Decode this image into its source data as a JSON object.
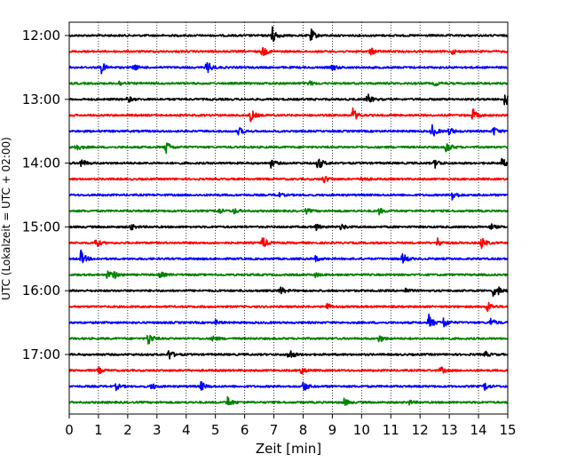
{
  "chart_data": {
    "type": "line",
    "title": "",
    "xlabel": "Zeit  [min]",
    "ylabel": "UTC (Lokalzeit = UTC + 02:00)",
    "xlim": [
      0,
      15
    ],
    "x_ticks": [
      0,
      1,
      2,
      3,
      4,
      5,
      6,
      7,
      8,
      9,
      10,
      11,
      12,
      13,
      14,
      15
    ],
    "x_tick_labels": [
      "0",
      "1",
      "2",
      "3",
      "4",
      "5",
      "6",
      "7",
      "8",
      "9",
      "10",
      "11",
      "12",
      "13",
      "14",
      "15"
    ],
    "y_tick_labels": [
      "12:00",
      "13:00",
      "14:00",
      "15:00",
      "16:00",
      "17:00"
    ],
    "vertical_grid": true,
    "grid_style": "dotted",
    "trace_interval_min": 15,
    "color_cycle": [
      "#000000",
      "#ff0000",
      "#0000ff",
      "#008000"
    ],
    "traces": [
      {
        "start": "12:00",
        "color": "#000000",
        "events": [
          {
            "x": 6.9,
            "amp": 1.6
          },
          {
            "x": 8.25,
            "amp": 0.9
          }
        ]
      },
      {
        "start": "12:15",
        "color": "#ff0000",
        "events": [
          {
            "x": 6.6,
            "amp": 0.7
          },
          {
            "x": 10.3,
            "amp": 0.5
          },
          {
            "x": 13.1,
            "amp": 0.3
          }
        ]
      },
      {
        "start": "12:30",
        "color": "#0000ff",
        "events": [
          {
            "x": 1.1,
            "amp": 0.7
          },
          {
            "x": 2.2,
            "amp": 0.4
          },
          {
            "x": 4.7,
            "amp": 0.9
          },
          {
            "x": 9.0,
            "amp": 0.4
          }
        ]
      },
      {
        "start": "12:45",
        "color": "#008000",
        "events": [
          {
            "x": 1.7,
            "amp": 0.3
          },
          {
            "x": 8.2,
            "amp": 0.3
          },
          {
            "x": 12.5,
            "amp": 0.3
          }
        ]
      },
      {
        "start": "13:00",
        "color": "#000000",
        "events": [
          {
            "x": 2.0,
            "amp": 0.4
          },
          {
            "x": 10.2,
            "amp": 0.7
          },
          {
            "x": 14.9,
            "amp": 0.9
          }
        ]
      },
      {
        "start": "13:15",
        "color": "#ff0000",
        "events": [
          {
            "x": 6.2,
            "amp": 0.8
          },
          {
            "x": 9.7,
            "amp": 0.9
          },
          {
            "x": 13.8,
            "amp": 0.8
          }
        ]
      },
      {
        "start": "13:30",
        "color": "#0000ff",
        "events": [
          {
            "x": 5.8,
            "amp": 0.5
          },
          {
            "x": 12.4,
            "amp": 0.9
          },
          {
            "x": 13.0,
            "amp": 0.5
          },
          {
            "x": 14.5,
            "amp": 0.6
          }
        ]
      },
      {
        "start": "13:45",
        "color": "#008000",
        "events": [
          {
            "x": 0.2,
            "amp": 0.6
          },
          {
            "x": 3.3,
            "amp": 0.9
          },
          {
            "x": 12.9,
            "amp": 0.8
          }
        ]
      },
      {
        "start": "14:00",
        "color": "#000000",
        "events": [
          {
            "x": 0.4,
            "amp": 0.6
          },
          {
            "x": 6.9,
            "amp": 0.5
          },
          {
            "x": 8.5,
            "amp": 1.0
          },
          {
            "x": 12.5,
            "amp": 0.6
          },
          {
            "x": 14.8,
            "amp": 0.6
          }
        ]
      },
      {
        "start": "14:15",
        "color": "#ff0000",
        "events": [
          {
            "x": 8.7,
            "amp": 0.5
          },
          {
            "x": 10.0,
            "amp": 0.4
          }
        ]
      },
      {
        "start": "14:30",
        "color": "#0000ff",
        "events": [
          {
            "x": 7.1,
            "amp": 0.4
          },
          {
            "x": 13.1,
            "amp": 0.7
          }
        ]
      },
      {
        "start": "14:45",
        "color": "#008000",
        "events": [
          {
            "x": 5.1,
            "amp": 0.4
          },
          {
            "x": 5.6,
            "amp": 0.4
          },
          {
            "x": 8.1,
            "amp": 0.3
          },
          {
            "x": 10.6,
            "amp": 0.4
          }
        ]
      },
      {
        "start": "15:00",
        "color": "#000000",
        "events": [
          {
            "x": 2.1,
            "amp": 0.4
          },
          {
            "x": 8.4,
            "amp": 0.5
          },
          {
            "x": 9.3,
            "amp": 0.4
          },
          {
            "x": 14.4,
            "amp": 0.4
          }
        ]
      },
      {
        "start": "15:15",
        "color": "#ff0000",
        "events": [
          {
            "x": 0.9,
            "amp": 0.6
          },
          {
            "x": 6.6,
            "amp": 0.9
          },
          {
            "x": 12.6,
            "amp": 0.6
          },
          {
            "x": 14.1,
            "amp": 0.7
          }
        ]
      },
      {
        "start": "15:30",
        "color": "#0000ff",
        "events": [
          {
            "x": 0.4,
            "amp": 1.0
          },
          {
            "x": 8.4,
            "amp": 0.4
          },
          {
            "x": 11.4,
            "amp": 0.8
          }
        ]
      },
      {
        "start": "15:45",
        "color": "#008000",
        "events": [
          {
            "x": 1.3,
            "amp": 0.6
          },
          {
            "x": 1.5,
            "amp": 0.5
          },
          {
            "x": 3.1,
            "amp": 0.4
          },
          {
            "x": 8.4,
            "amp": 0.3
          }
        ]
      },
      {
        "start": "16:00",
        "color": "#000000",
        "events": [
          {
            "x": 7.2,
            "amp": 0.6
          },
          {
            "x": 11.5,
            "amp": 0.3
          },
          {
            "x": 14.5,
            "amp": 0.6
          },
          {
            "x": 14.7,
            "amp": 0.4
          }
        ]
      },
      {
        "start": "16:15",
        "color": "#ff0000",
        "events": [
          {
            "x": 8.8,
            "amp": 0.5
          },
          {
            "x": 14.3,
            "amp": 0.7
          }
        ]
      },
      {
        "start": "16:30",
        "color": "#0000ff",
        "events": [
          {
            "x": 5.0,
            "amp": 0.3
          },
          {
            "x": 12.3,
            "amp": 1.0
          },
          {
            "x": 12.8,
            "amp": 0.7
          },
          {
            "x": 14.4,
            "amp": 0.6
          }
        ]
      },
      {
        "start": "16:45",
        "color": "#008000",
        "events": [
          {
            "x": 2.7,
            "amp": 0.9
          },
          {
            "x": 4.9,
            "amp": 0.4
          },
          {
            "x": 10.6,
            "amp": 0.5
          }
        ]
      },
      {
        "start": "17:00",
        "color": "#000000",
        "events": [
          {
            "x": 3.4,
            "amp": 0.7
          },
          {
            "x": 7.5,
            "amp": 0.9
          },
          {
            "x": 14.2,
            "amp": 0.4
          }
        ]
      },
      {
        "start": "17:15",
        "color": "#ff0000",
        "events": [
          {
            "x": 1.0,
            "amp": 0.4
          },
          {
            "x": 7.9,
            "amp": 0.6
          },
          {
            "x": 12.7,
            "amp": 0.5
          }
        ]
      },
      {
        "start": "17:30",
        "color": "#0000ff",
        "events": [
          {
            "x": 1.6,
            "amp": 0.4
          },
          {
            "x": 2.8,
            "amp": 0.4
          },
          {
            "x": 4.5,
            "amp": 0.6
          },
          {
            "x": 8.0,
            "amp": 0.7
          },
          {
            "x": 14.2,
            "amp": 0.5
          }
        ]
      },
      {
        "start": "17:45",
        "color": "#008000",
        "events": [
          {
            "x": 5.4,
            "amp": 0.8
          },
          {
            "x": 9.4,
            "amp": 0.5
          },
          {
            "x": 11.6,
            "amp": 0.3
          }
        ]
      }
    ]
  }
}
